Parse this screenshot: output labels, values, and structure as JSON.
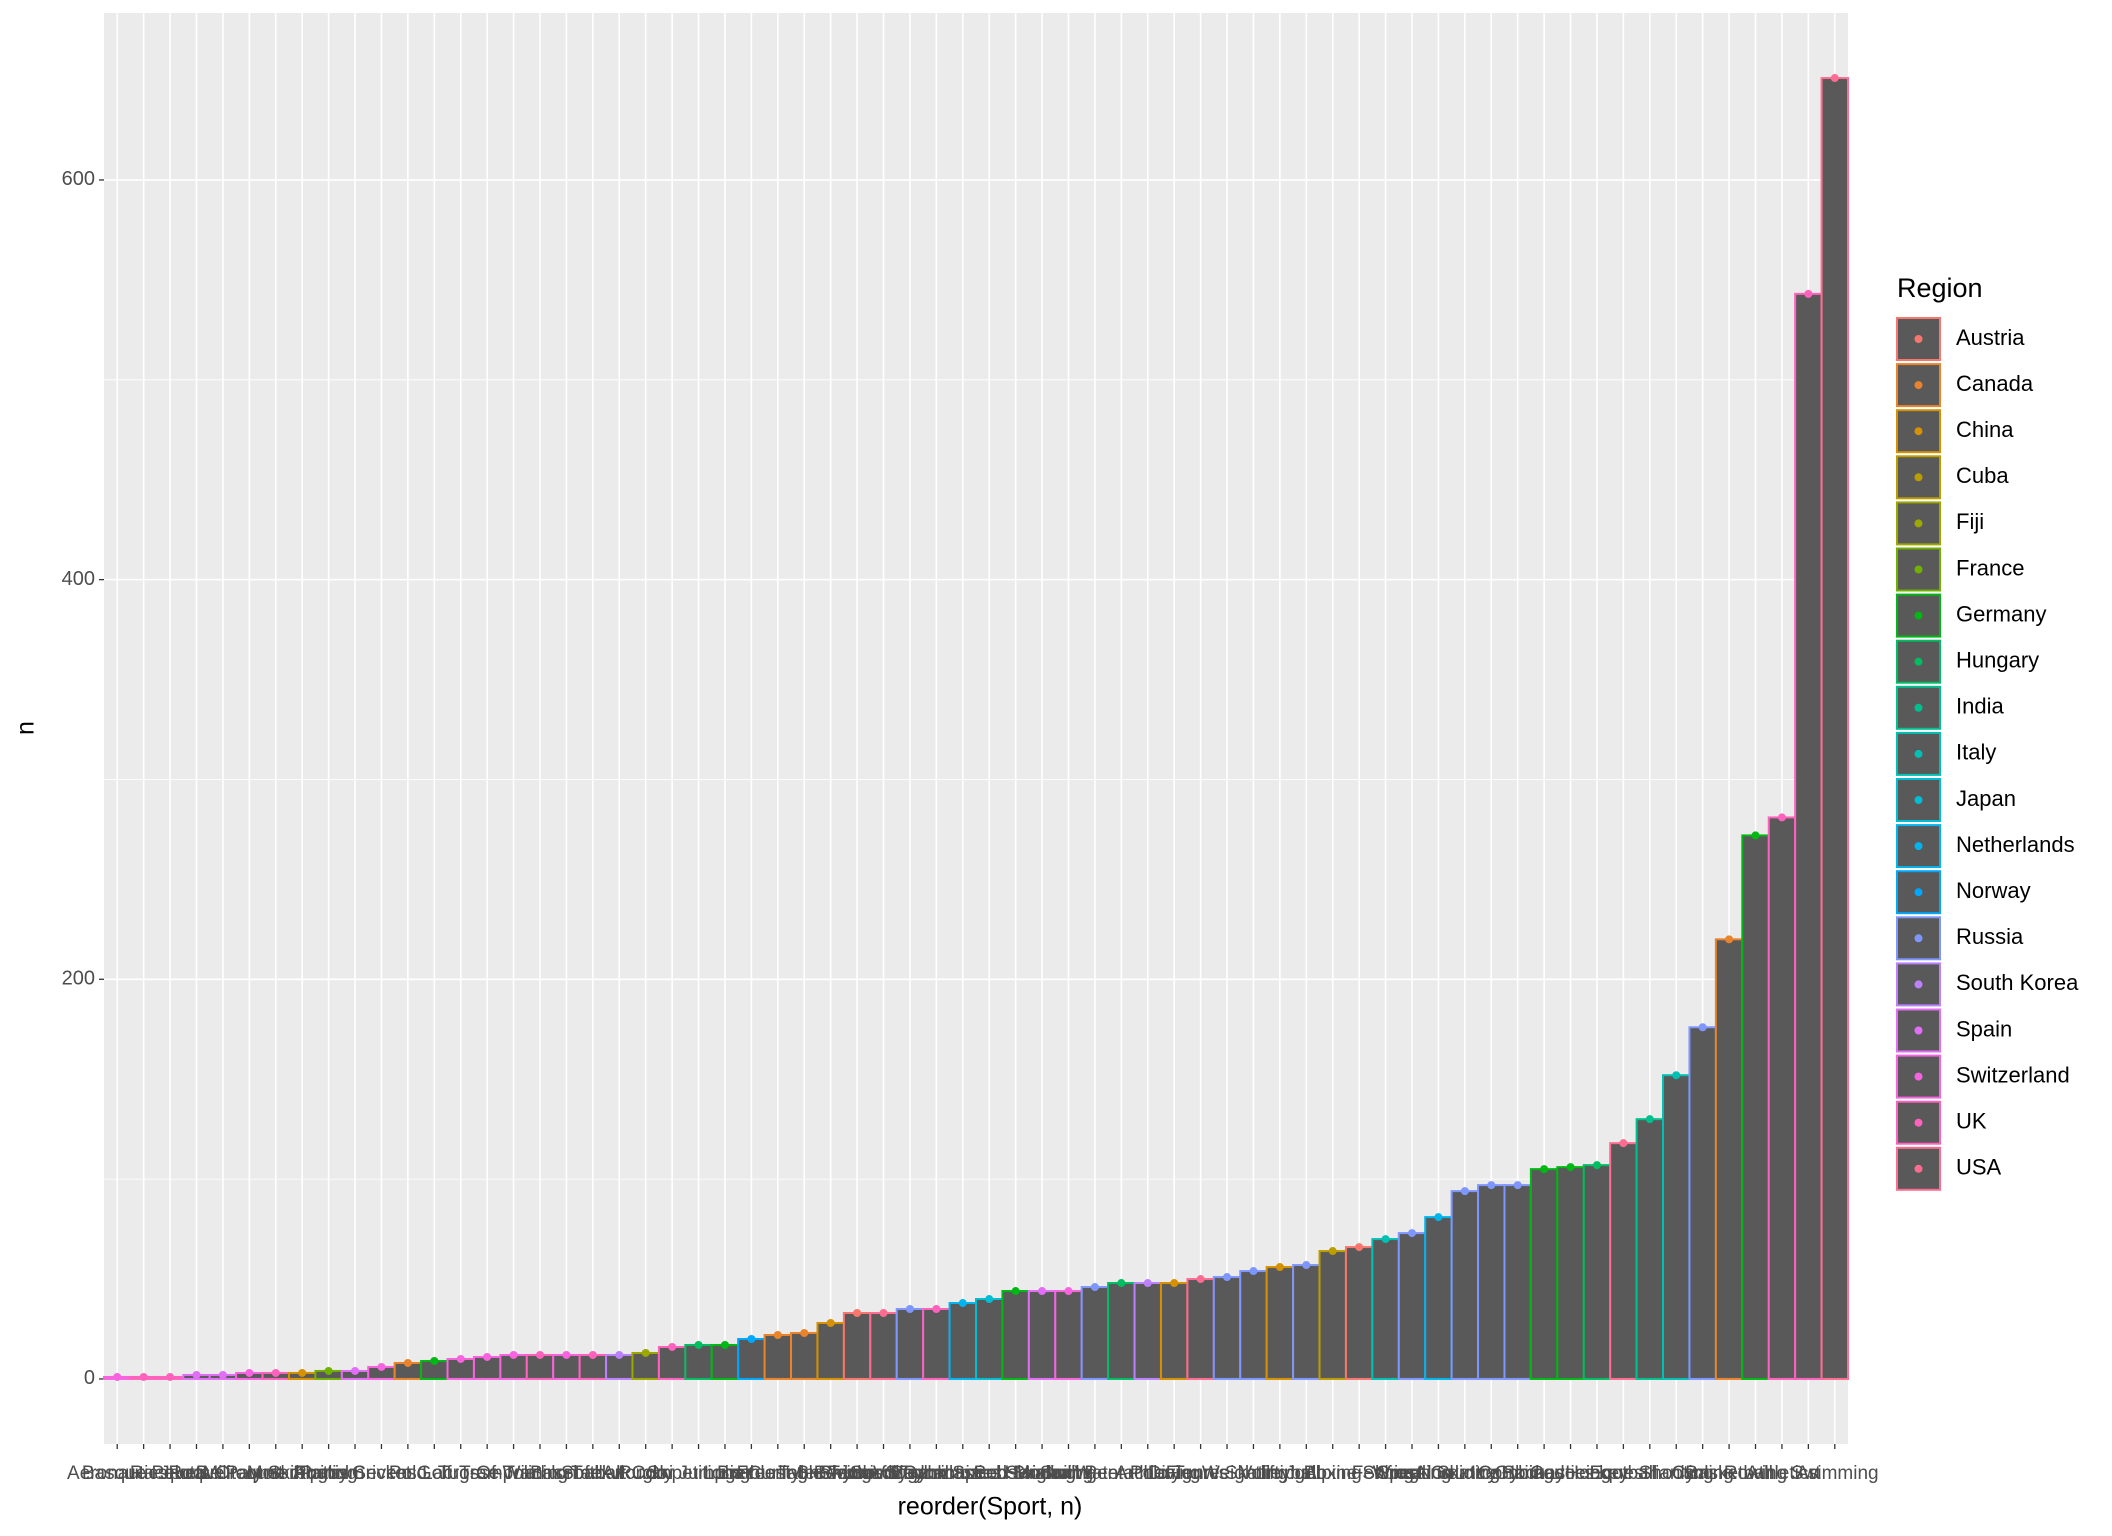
{
  "chart_data": {
    "type": "bar",
    "x_label": "reorder(Sport, n)",
    "y_label": "n",
    "categories": [
      "Aeronautics",
      "Basque Pelota",
      "Racquets",
      "Roque",
      "Jeu De Paume",
      "Croquet",
      "Military Ski Patrol",
      "Motorboating",
      "Alpinism",
      "Rugby Sevens",
      "Cricket",
      "Polo",
      "Golf",
      "Lacrosse",
      "Tug-Of-War",
      "Trampolining",
      "Triathlon",
      "Baseball",
      "Softball",
      "Taekwondo",
      "Rugby",
      "Art Competitions",
      "Ski Jumping",
      "Luge",
      "Biathlon",
      "Curling",
      "Freestyle Skiing",
      "Table Tennis",
      "Snowboarding",
      "Beach Volleyball",
      "Rhythmic Gymnastics",
      "Badminton",
      "Short Track Speed Skating",
      "Synchronized Swimming",
      "Bobsleigh",
      "Handball",
      "Sailing",
      "Modern Pentathlon",
      "Water Polo",
      "Archery",
      "Diving",
      "Tennis",
      "Figure Skating",
      "Weightlifting",
      "Volleyball",
      "Judo",
      "Boxing",
      "Alpine Skiing",
      "Fencing",
      "Wrestling",
      "Speed Skating",
      "Cross Country Skiing",
      "Nordic Combined",
      "Ice Hockey",
      "Gymnastics",
      "Canoeing",
      "Hockey",
      "Football",
      "Equestrianism",
      "Shooting",
      "Cycling",
      "Basketball",
      "Rowing",
      "Athletics",
      "Art",
      "Swimming"
    ],
    "values": [
      1,
      1,
      1,
      2,
      2,
      3,
      3,
      3,
      4,
      4,
      6,
      8,
      9,
      10,
      11,
      12,
      12,
      12,
      12,
      12,
      13,
      16,
      17,
      17,
      20,
      22,
      23,
      28,
      33,
      33,
      35,
      35,
      38,
      40,
      44,
      44,
      44,
      46,
      48,
      48,
      48,
      50,
      51,
      54,
      56,
      57,
      64,
      66,
      70,
      73,
      81,
      94,
      97,
      97,
      105,
      106,
      107,
      118,
      130,
      152,
      176,
      220,
      272,
      281,
      543,
      651
    ],
    "regions": [
      "Switzerland",
      "UK",
      "UK",
      "Spain",
      "Spain",
      "Switzerland",
      "UK",
      "China",
      "France",
      "Spain",
      "Switzerland",
      "Canada",
      "Germany",
      "Switzerland",
      "Switzerland",
      "Switzerland",
      "UK",
      "Switzerland",
      "UK",
      "South Korea",
      "Fiji",
      "UK",
      "Hungary",
      "Germany",
      "Norway",
      "Canada",
      "Canada",
      "China",
      "Austria",
      "USA",
      "Russia",
      "UK",
      "Netherlands",
      "Japan",
      "Germany",
      "Spain",
      "Switzerland",
      "Russia",
      "Hungary",
      "South Korea",
      "China",
      "USA",
      "Russia",
      "Russia",
      "China",
      "Russia",
      "Cuba",
      "Austria",
      "Italy",
      "Russia",
      "Netherlands",
      "Russia",
      "Russia",
      "Russia",
      "Germany",
      "Germany",
      "Hungary",
      "USA",
      "India",
      "Italy",
      "Russia",
      "Canada",
      "Germany",
      "UK",
      "UK",
      "USA"
    ],
    "legend": {
      "title": "Region",
      "items": [
        {
          "name": "Austria",
          "color": "#F8766D"
        },
        {
          "name": "Canada",
          "color": "#E9842C"
        },
        {
          "name": "China",
          "color": "#D69100"
        },
        {
          "name": "Cuba",
          "color": "#BC9D00"
        },
        {
          "name": "Fiji",
          "color": "#9CA700"
        },
        {
          "name": "France",
          "color": "#6FB000"
        },
        {
          "name": "Germany",
          "color": "#00B813"
        },
        {
          "name": "Hungary",
          "color": "#00BD61"
        },
        {
          "name": "India",
          "color": "#00C08E"
        },
        {
          "name": "Italy",
          "color": "#00C0B4"
        },
        {
          "name": "Japan",
          "color": "#00BDD4"
        },
        {
          "name": "Netherlands",
          "color": "#00B5EE"
        },
        {
          "name": "Norway",
          "color": "#00A7FF"
        },
        {
          "name": "Russia",
          "color": "#7F96FF"
        },
        {
          "name": "South Korea",
          "color": "#BC81FF"
        },
        {
          "name": "Spain",
          "color": "#E26EF7"
        },
        {
          "name": "Switzerland",
          "color": "#F863DF"
        },
        {
          "name": "UK",
          "color": "#FF62BC"
        },
        {
          "name": "USA",
          "color": "#FF6C91"
        }
      ]
    },
    "bar_fill": "#595959",
    "ylim": [
      -32.55,
      683.55
    ],
    "yticks": [
      0,
      200,
      400,
      600
    ],
    "grid": true
  }
}
